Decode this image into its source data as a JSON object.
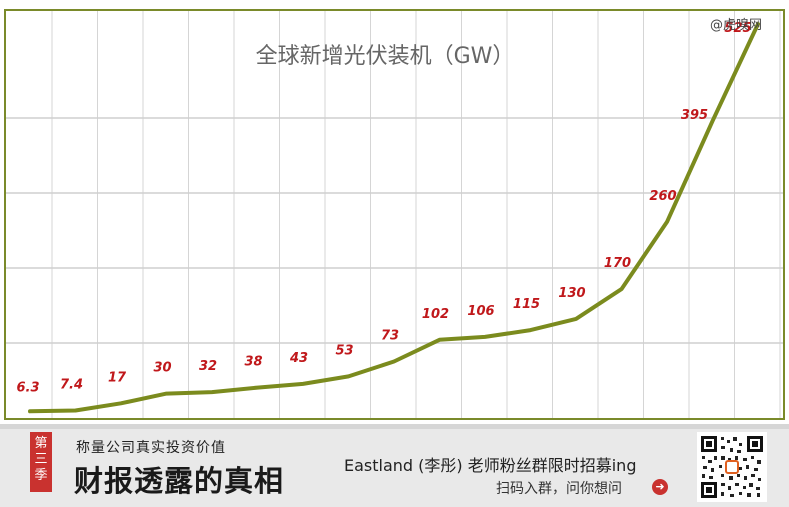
{
  "watermark": "@虎嗅网",
  "chart_data": {
    "type": "line",
    "title": "全球新增光伏装机（GW）",
    "xlabel": "",
    "ylabel": "",
    "ylim": [
      0,
      530
    ],
    "grid": true,
    "series": [
      {
        "values": [
          6.3,
          7.4,
          17,
          30,
          32,
          38,
          43,
          53,
          73,
          102,
          106,
          115,
          130,
          170,
          260,
          395,
          525
        ]
      }
    ],
    "data_labels": [
      "6.3",
      "7.4",
      "17",
      "30",
      "32",
      "38",
      "43",
      "53",
      "73",
      "102",
      "106",
      "115",
      "130",
      "170",
      "260",
      "395",
      "525"
    ],
    "colors": {
      "line": "#7b8b1e",
      "label": "#c0181b",
      "grid": "#d5d5d5",
      "frame": "#7a8a2a"
    }
  },
  "banner": {
    "season_chars": [
      "第",
      "三",
      "季"
    ],
    "slogan": "称量公司真实投资价值",
    "series_title": "财报透露的真相",
    "recruit": "Eastland (李彤) 老师粉丝群限时招募ing",
    "scan": "扫码入群，问你想问",
    "arrow_icon": "arrow-right-circle-icon"
  }
}
